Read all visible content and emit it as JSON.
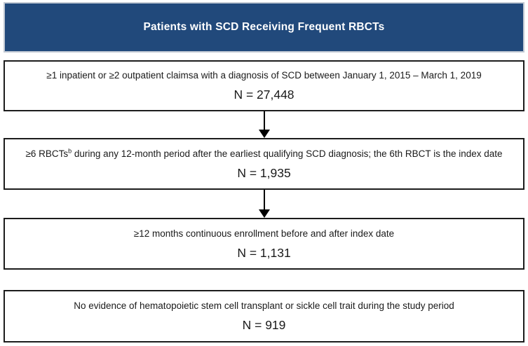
{
  "header": {
    "title": "Patients with SCD Receiving Frequent RBCTs"
  },
  "colors": {
    "header_bg": "#21497B",
    "header_border": "#C3CAD4",
    "header_text": "#FFFFFF",
    "box_border": "#1C1C1C",
    "arrow": "#000000",
    "background": "#FFFFFF"
  },
  "boxes": [
    {
      "criteria_before": "≥1 inpatient or ≥2 outpatient claimsa with a diagnosis of SCD between January 1, 2015 – March 1, 2019",
      "criteria_sup": "",
      "criteria_after": "",
      "n_value": "N = 27,448"
    },
    {
      "criteria_before": "≥6 RBCTs",
      "criteria_sup": "b",
      "criteria_after": " during any 12-month period after the earliest qualifying SCD diagnosis; the 6th RBCT is the index date",
      "n_value": "N = 1,935"
    },
    {
      "criteria_before": "≥12 months continuous enrollment before and after index date",
      "criteria_sup": "",
      "criteria_after": "",
      "n_value": "N = 1,131"
    },
    {
      "criteria_before": "No evidence of hematopoietic stem cell transplant or sickle cell trait during the study period",
      "criteria_sup": "",
      "criteria_after": "",
      "n_value": "N = 919"
    }
  ]
}
